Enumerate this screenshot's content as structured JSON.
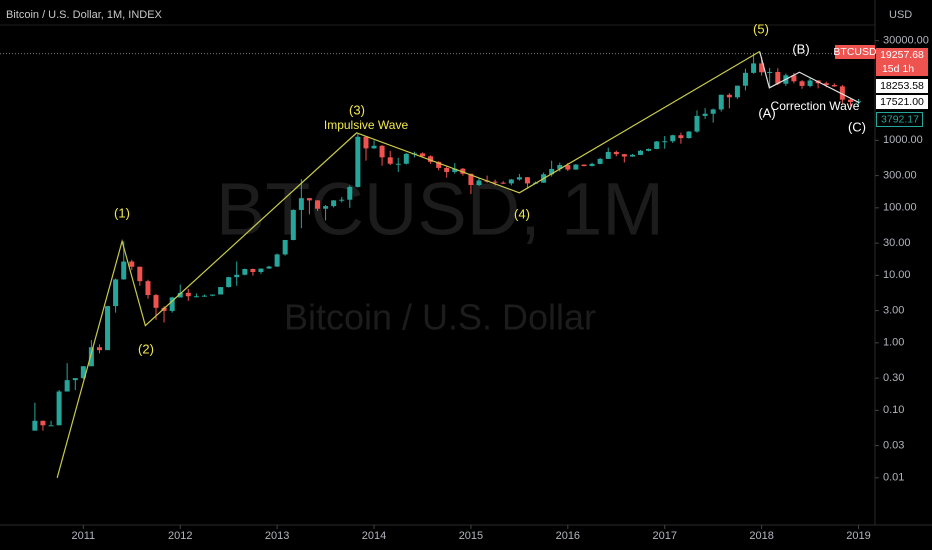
{
  "chart_data": {
    "type": "candlestick",
    "title": "Bitcoin / U.S. Dollar, 1M, INDEX",
    "watermark": "BTCUSD, 1M",
    "watermark_subtitle": "Bitcoin / U.S. Dollar",
    "y_unit": "USD",
    "log_scale": true,
    "up_color": "#26a69a",
    "down_color": "#ef5350",
    "xlim": [
      2010.14,
      2019.17
    ],
    "xticks": [
      2011,
      2012,
      2013,
      2014,
      2015,
      2016,
      2017,
      2018,
      2019
    ],
    "ylim": [
      0.002,
      120000
    ],
    "yticks": [
      {
        "value": 30000,
        "label": "30000.00"
      },
      {
        "value": 1000,
        "label": "1000.00"
      },
      {
        "value": 300,
        "label": "300.00"
      },
      {
        "value": 100,
        "label": "100.00"
      },
      {
        "value": 30,
        "label": "30.00"
      },
      {
        "value": 10,
        "label": "10.00"
      },
      {
        "value": 3,
        "label": "3.00"
      },
      {
        "value": 1,
        "label": "1.00"
      },
      {
        "value": 0.3,
        "label": "0.30"
      },
      {
        "value": 0.1,
        "label": "0.10"
      },
      {
        "value": 0.03,
        "label": "0.03"
      },
      {
        "value": 0.01,
        "label": "0.01"
      }
    ],
    "x": [
      2010.5,
      2010.583,
      2010.667,
      2010.75,
      2010.833,
      2010.917,
      2011,
      2011.083,
      2011.167,
      2011.25,
      2011.333,
      2011.417,
      2011.5,
      2011.583,
      2011.667,
      2011.75,
      2011.833,
      2011.917,
      2012,
      2012.083,
      2012.167,
      2012.25,
      2012.333,
      2012.417,
      2012.5,
      2012.583,
      2012.667,
      2012.75,
      2012.833,
      2012.917,
      2013,
      2013.083,
      2013.167,
      2013.25,
      2013.333,
      2013.417,
      2013.5,
      2013.583,
      2013.667,
      2013.75,
      2013.833,
      2013.917,
      2014,
      2014.083,
      2014.167,
      2014.25,
      2014.333,
      2014.417,
      2014.5,
      2014.583,
      2014.667,
      2014.75,
      2014.833,
      2014.917,
      2015,
      2015.083,
      2015.167,
      2015.25,
      2015.333,
      2015.417,
      2015.5,
      2015.583,
      2015.667,
      2015.75,
      2015.833,
      2015.917,
      2016,
      2016.083,
      2016.167,
      2016.25,
      2016.333,
      2016.417,
      2016.5,
      2016.583,
      2016.667,
      2016.75,
      2016.833,
      2016.917,
      2017,
      2017.083,
      2017.167,
      2017.25,
      2017.333,
      2017.417,
      2017.5,
      2017.583,
      2017.667,
      2017.75,
      2017.833,
      2017.917,
      2018,
      2018.083,
      2018.167,
      2018.25,
      2018.333,
      2018.417,
      2018.5,
      2018.583,
      2018.667,
      2018.75,
      2018.833,
      2018.917,
      2019
    ],
    "open": [
      0.05,
      0.07,
      0.06,
      0.06,
      0.19,
      0.28,
      0.3,
      0.45,
      0.86,
      0.78,
      3.5,
      8.7,
      16,
      13.4,
      8.2,
      5.1,
      3.3,
      2.97,
      4.7,
      5.5,
      4.9,
      4.9,
      5,
      5.2,
      6.7,
      9.4,
      10.2,
      12.4,
      11.2,
      12.6,
      13.5,
      20.4,
      33.4,
      93,
      139,
      129,
      97,
      106,
      129,
      132,
      204,
      1130,
      760,
      830,
      560,
      450,
      450,
      630,
      640,
      580,
      480,
      390,
      340,
      380,
      320,
      218,
      254,
      244,
      236,
      230,
      263,
      284,
      230,
      236,
      314,
      377,
      430,
      369,
      437,
      416,
      448,
      531,
      673,
      624,
      575,
      609,
      700,
      745,
      963,
      970,
      1190,
      1080,
      1350,
      2300,
      2480,
      2870,
      4730,
      4340,
      6450,
      10000,
      13800,
      10200,
      10300,
      6900,
      9200,
      7500,
      6400,
      7700,
      7000,
      6600,
      6300,
      4000,
      3700
    ],
    "high": [
      0.13,
      0.07,
      0.07,
      0.2,
      0.5,
      0.3,
      0.45,
      1.1,
      0.95,
      3.5,
      9,
      32,
      17,
      13.5,
      8.6,
      5.3,
      3.5,
      4.8,
      7.3,
      6.3,
      5.4,
      5.2,
      5.2,
      6.7,
      9.5,
      16,
      12.6,
      12.6,
      12.6,
      13.8,
      21,
      33,
      95,
      266,
      140,
      130,
      110,
      130,
      145,
      215,
      1240,
      1160,
      1000,
      850,
      700,
      550,
      650,
      680,
      660,
      600,
      490,
      420,
      460,
      390,
      320,
      275,
      300,
      262,
      248,
      268,
      318,
      286,
      246,
      334,
      500,
      467,
      463,
      446,
      440,
      467,
      550,
      780,
      704,
      630,
      630,
      720,
      757,
      980,
      1160,
      1210,
      1300,
      1370,
      2780,
      3000,
      2950,
      4760,
      5000,
      6480,
      11500,
      19800,
      17200,
      11800,
      11700,
      9800,
      10000,
      7800,
      8500,
      7800,
      7400,
      7000,
      6600,
      4300,
      4100
    ],
    "low": [
      0.05,
      0.05,
      0.06,
      0.06,
      0.19,
      0.2,
      0.29,
      0.45,
      0.7,
      0.78,
      2.8,
      8.6,
      12,
      7,
      4.5,
      2.2,
      2,
      2.8,
      4.7,
      4.2,
      4.7,
      4.8,
      4.9,
      5.2,
      6.6,
      7,
      10,
      9.9,
      10.5,
      12.5,
      13.3,
      19.6,
      33,
      50,
      80,
      90,
      65,
      101,
      120,
      100,
      200,
      500,
      750,
      420,
      430,
      340,
      440,
      560,
      560,
      450,
      360,
      280,
      320,
      300,
      160,
      210,
      235,
      214,
      226,
      215,
      253,
      195,
      225,
      235,
      290,
      345,
      350,
      365,
      410,
      413,
      440,
      530,
      580,
      470,
      570,
      604,
      688,
      740,
      750,
      915,
      890,
      1060,
      1300,
      2080,
      1830,
      2670,
      2970,
      4110,
      5500,
      9700,
      9100,
      6000,
      6600,
      6400,
      7000,
      5800,
      6100,
      5900,
      6100,
      6200,
      3500,
      3200,
      3400
    ],
    "close": [
      0.07,
      0.06,
      0.06,
      0.19,
      0.28,
      0.3,
      0.45,
      0.86,
      0.78,
      3.5,
      8.7,
      16,
      13.4,
      8.2,
      5.1,
      3.3,
      2.97,
      4.7,
      5.5,
      4.9,
      4.9,
      5,
      5.2,
      6.7,
      9.4,
      10.2,
      12.4,
      11.2,
      12.6,
      13.5,
      20.4,
      33.4,
      93,
      139,
      129,
      97,
      106,
      129,
      132,
      204,
      1130,
      760,
      830,
      560,
      450,
      450,
      630,
      640,
      580,
      480,
      390,
      340,
      380,
      320,
      218,
      254,
      244,
      236,
      230,
      263,
      284,
      230,
      236,
      314,
      377,
      430,
      369,
      437,
      416,
      448,
      531,
      673,
      624,
      575,
      609,
      700,
      745,
      963,
      970,
      1190,
      1080,
      1350,
      2300,
      2480,
      2870,
      4730,
      4340,
      6450,
      10000,
      13800,
      10200,
      10300,
      6900,
      9200,
      7500,
      6400,
      7700,
      7000,
      6600,
      6300,
      4000,
      3700,
      3792.17
    ],
    "waves": [
      {
        "color": "#c9c94a",
        "x": [
          2010.73,
          2011.4,
          2011.64,
          2013.82,
          2015.5,
          2017.98
        ],
        "y": [
          0.01,
          32,
          1.8,
          1290,
          167,
          20700
        ]
      },
      {
        "color": "#e0e0e0",
        "x": [
          2017.98,
          2018.08,
          2018.39,
          2019.01
        ],
        "y": [
          20700,
          6000,
          10200,
          3600
        ]
      }
    ],
    "labels": [
      "(1)",
      "(2)",
      "(3)",
      "Impulsive Wave",
      "(4)",
      "(5)",
      "(A)",
      "(B)",
      "(C)",
      "Correction Wave"
    ],
    "symbol": "BTCUSD",
    "countdown": "15d 1h",
    "last_high": 19257.68,
    "price_labels": [
      18253.58,
      {
        "value": 17521,
        "label": "17521.00"
      },
      3792.17
    ]
  }
}
